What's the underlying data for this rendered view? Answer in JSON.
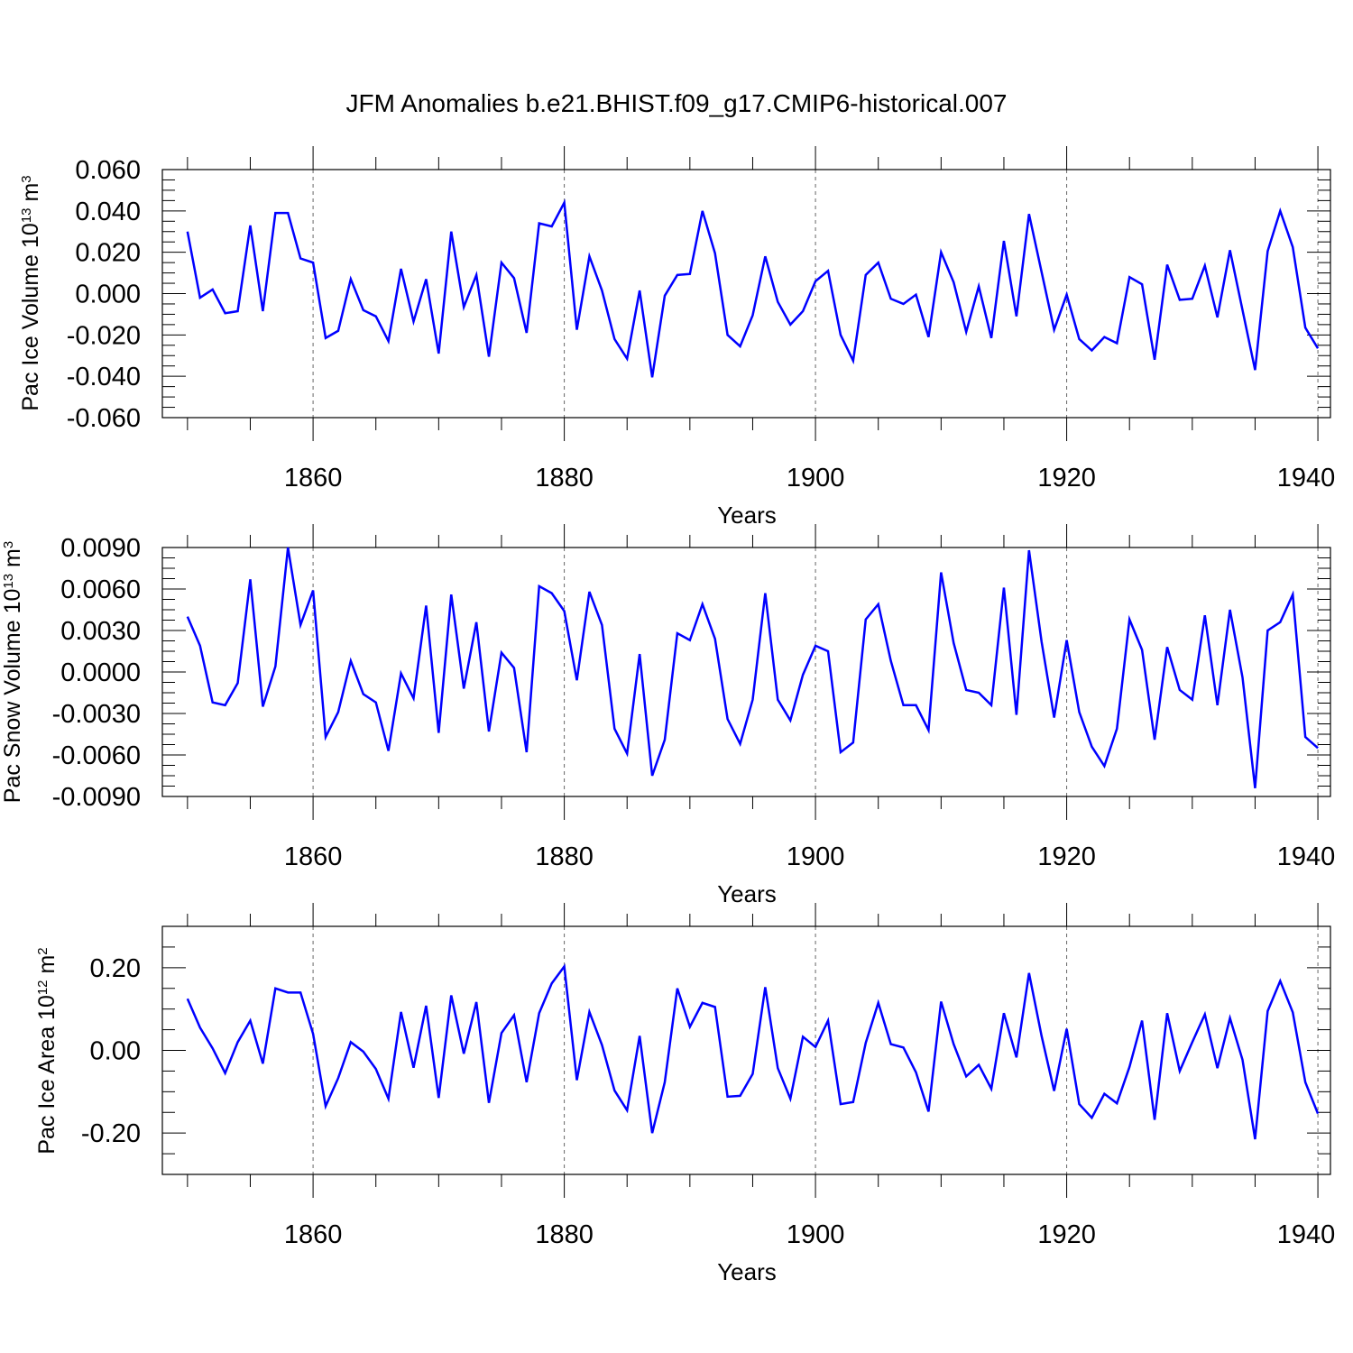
{
  "figure": {
    "title": "JFM Anomalies b.e21.BHIST.f09_g17.CMIP6-historical.007"
  },
  "colors": {
    "line": "#0000ff",
    "axis": "#000000",
    "grid": "#666666"
  },
  "chart_data": [
    {
      "type": "line",
      "name": "ice-volume",
      "title": "JFM Anomalies b.e21.BHIST.f09_g17.CMIP6-historical.007",
      "ylabel": {
        "main": "Pac Ice Volume 10",
        "exp": "13",
        "unit": " m",
        "unit_exp": "3"
      },
      "xlabel": "Years",
      "xlim": [
        1848,
        1941
      ],
      "ylim": [
        -0.06,
        0.06
      ],
      "grid": "dashed vertical at major x ticks",
      "xticks": [
        1860,
        1880,
        1900,
        1920,
        1940
      ],
      "xtick_labels": [
        "1860",
        "1880",
        "1900",
        "1920",
        "1940"
      ],
      "yticks": [
        -0.06,
        -0.04,
        -0.02,
        0.0,
        0.02,
        0.04,
        0.06
      ],
      "ytick_labels": [
        "-0.060",
        "-0.040",
        "-0.020",
        "0.000",
        "0.020",
        "0.040",
        "0.060"
      ],
      "yminor_step": 0.005,
      "x_start": 1850,
      "values": [
        0.03,
        -0.002,
        0.002,
        -0.0095,
        -0.0085,
        0.033,
        -0.0085,
        0.039,
        0.039,
        0.017,
        0.015,
        -0.0215,
        -0.018,
        0.007,
        -0.008,
        -0.011,
        -0.023,
        0.012,
        -0.0135,
        0.007,
        -0.029,
        0.03,
        -0.0065,
        0.009,
        -0.0305,
        0.015,
        0.0075,
        -0.019,
        0.034,
        0.0325,
        0.044,
        -0.0175,
        0.018,
        0.0015,
        -0.022,
        -0.0315,
        0.0015,
        -0.0405,
        -0.001,
        0.009,
        0.0095,
        0.04,
        0.0195,
        -0.02,
        -0.0255,
        -0.0105,
        0.018,
        -0.004,
        -0.015,
        -0.0085,
        0.006,
        0.011,
        -0.02,
        -0.0325,
        0.009,
        0.015,
        -0.0025,
        -0.005,
        -0.0005,
        -0.021,
        0.02,
        0.0055,
        -0.0185,
        0.0035,
        -0.0215,
        0.0255,
        -0.011,
        0.0385,
        0.0105,
        -0.0175,
        -0.0005,
        -0.022,
        -0.0275,
        -0.021,
        -0.024,
        0.008,
        0.0045,
        -0.032,
        0.014,
        -0.003,
        -0.0025,
        0.0135,
        -0.0115,
        0.021,
        -0.008,
        -0.037,
        0.0205,
        0.04,
        0.0225,
        -0.0165,
        -0.0265
      ]
    },
    {
      "type": "line",
      "name": "snow-volume",
      "ylabel": {
        "main": "Pac Snow Volume 10",
        "exp": "13",
        "unit": " m",
        "unit_exp": "3"
      },
      "xlabel": "Years",
      "xlim": [
        1848,
        1941
      ],
      "ylim": [
        -0.009,
        0.009
      ],
      "grid": "dashed vertical at major x ticks",
      "xticks": [
        1860,
        1880,
        1900,
        1920,
        1940
      ],
      "xtick_labels": [
        "1860",
        "1880",
        "1900",
        "1920",
        "1940"
      ],
      "yticks": [
        -0.009,
        -0.006,
        -0.003,
        0.0,
        0.003,
        0.006,
        0.009
      ],
      "ytick_labels": [
        "-0.0090",
        "-0.0060",
        "-0.0030",
        "0.0000",
        "0.0030",
        "0.0060",
        "0.0090"
      ],
      "yminor_step": 0.00075,
      "x_start": 1850,
      "values": [
        0.004,
        0.0019,
        -0.0022,
        -0.0024,
        -0.0008,
        0.0067,
        -0.0025,
        0.0004,
        0.009,
        0.0034,
        0.0059,
        -0.0047,
        -0.0029,
        0.0008,
        -0.0016,
        -0.0022,
        -0.0057,
        -0.0001,
        -0.0019,
        0.0048,
        -0.0044,
        0.0056,
        -0.0012,
        0.0036,
        -0.0043,
        0.0014,
        0.0003,
        -0.0058,
        0.0062,
        0.0057,
        0.0044,
        -0.0006,
        0.0058,
        0.0034,
        -0.0041,
        -0.0059,
        0.0013,
        -0.0075,
        -0.0049,
        0.0028,
        0.0023,
        0.0049,
        0.0024,
        -0.0034,
        -0.0052,
        -0.002,
        0.0057,
        -0.002,
        -0.0035,
        -0.0002,
        0.0019,
        0.0015,
        -0.0058,
        -0.0051,
        0.0038,
        0.0049,
        0.0008,
        -0.0024,
        -0.0024,
        -0.0042,
        0.0072,
        0.0021,
        -0.0013,
        -0.0015,
        -0.0024,
        0.0061,
        -0.0031,
        0.0088,
        0.0022,
        -0.0033,
        0.0023,
        -0.0029,
        -0.0054,
        -0.0068,
        -0.0041,
        0.0038,
        0.0016,
        -0.0049,
        0.0018,
        -0.0013,
        -0.002,
        0.0041,
        -0.0024,
        0.0045,
        -0.0004,
        -0.0084,
        0.003,
        0.0036,
        0.0056,
        -0.0047,
        -0.0055
      ]
    },
    {
      "type": "line",
      "name": "ice-area",
      "ylabel": {
        "main": "Pac Ice Area 10",
        "exp": "12",
        "unit": " m",
        "unit_exp": "2"
      },
      "xlabel": "Years",
      "xlim": [
        1848,
        1941
      ],
      "ylim": [
        -0.3,
        0.3
      ],
      "grid": "dashed vertical at major x ticks",
      "xticks": [
        1860,
        1880,
        1900,
        1920,
        1940
      ],
      "xtick_labels": [
        "1860",
        "1880",
        "1900",
        "1920",
        "1940"
      ],
      "yticks": [
        -0.2,
        0.0,
        0.2
      ],
      "ytick_labels": [
        "-0.20",
        "0.00",
        "0.20"
      ],
      "yminor_step": 0.05,
      "x_start": 1850,
      "values": [
        0.125,
        0.055,
        0.005,
        -0.055,
        0.02,
        0.072,
        -0.032,
        0.15,
        0.14,
        0.14,
        0.04,
        -0.135,
        -0.067,
        0.02,
        -0.003,
        -0.045,
        -0.117,
        0.093,
        -0.042,
        0.108,
        -0.115,
        0.133,
        -0.008,
        0.117,
        -0.127,
        0.042,
        0.085,
        -0.077,
        0.09,
        0.162,
        0.203,
        -0.072,
        0.093,
        0.013,
        -0.097,
        -0.145,
        0.035,
        -0.2,
        -0.077,
        0.15,
        0.057,
        0.115,
        0.105,
        -0.112,
        -0.11,
        -0.057,
        0.153,
        -0.043,
        -0.117,
        0.033,
        0.008,
        0.072,
        -0.13,
        -0.125,
        0.018,
        0.115,
        0.015,
        0.007,
        -0.053,
        -0.148,
        0.118,
        0.015,
        -0.063,
        -0.035,
        -0.093,
        0.09,
        -0.017,
        0.187,
        0.035,
        -0.098,
        0.052,
        -0.13,
        -0.163,
        -0.105,
        -0.128,
        -0.04,
        0.072,
        -0.168,
        0.09,
        -0.05,
        0.02,
        0.087,
        -0.043,
        0.078,
        -0.023,
        -0.215,
        0.095,
        0.168,
        0.092,
        -0.077,
        -0.153
      ]
    }
  ]
}
